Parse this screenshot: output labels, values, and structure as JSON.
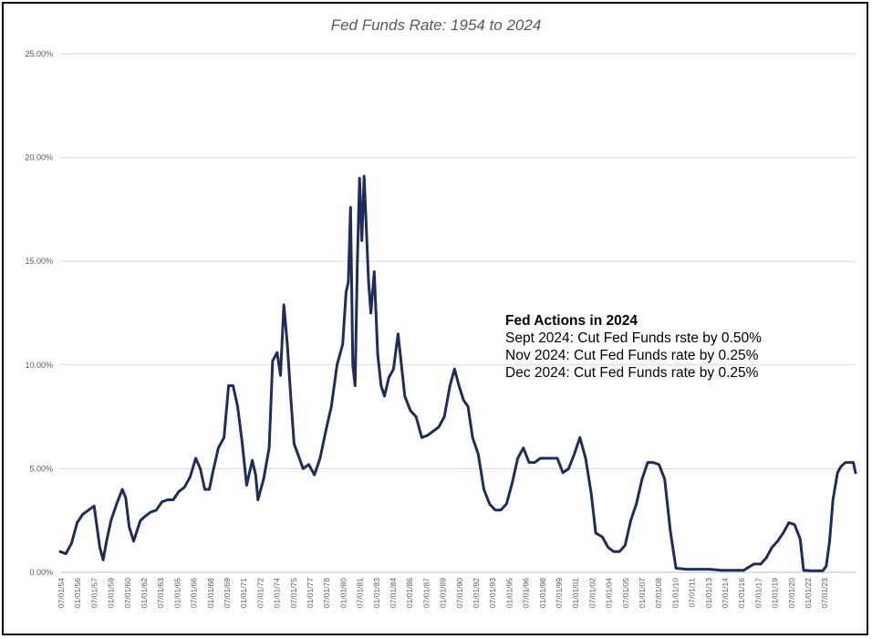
{
  "chart_data": {
    "type": "line",
    "title": "Fed Funds Rate: 1954 to 2024",
    "xlabel": "",
    "ylabel": "",
    "ylim": [
      0,
      25
    ],
    "y_ticks": [
      "0.00%",
      "5.00%",
      "10.00%",
      "15.00%",
      "20.00%",
      "25.00%"
    ],
    "x_tick_labels": [
      "07/01/54",
      "01/01/56",
      "07/01/57",
      "01/01/59",
      "07/01/60",
      "01/01/62",
      "07/01/63",
      "01/01/65",
      "07/01/66",
      "01/01/68",
      "07/01/69",
      "01/01/71",
      "07/01/72",
      "01/01/74",
      "07/01/75",
      "01/01/77",
      "07/01/78",
      "01/01/80",
      "07/01/81",
      "01/01/83",
      "07/01/84",
      "01/01/86",
      "07/01/87",
      "01/01/89",
      "07/01/90",
      "01/01/92",
      "07/01/93",
      "01/01/95",
      "07/01/96",
      "01/01/98",
      "07/01/99",
      "01/01/01",
      "07/01/02",
      "01/01/04",
      "07/01/05",
      "01/01/07",
      "07/01/08",
      "01/01/10",
      "07/01/11",
      "01/01/13",
      "07/01/14",
      "01/01/16",
      "07/01/17",
      "01/01/19",
      "07/01/20",
      "01/01/22",
      "07/01/23"
    ],
    "grid": true,
    "legend": "none",
    "line_color": "#1f2d5c",
    "series": [
      {
        "x": [
          1954.5,
          1955.0,
          1955.5,
          1956.0,
          1956.5,
          1957.0,
          1957.5,
          1958.0,
          1958.3,
          1958.6,
          1959.0,
          1959.5,
          1960.0,
          1960.3,
          1960.6,
          1961.0,
          1961.3,
          1961.6,
          1962.0,
          1962.5,
          1963.0,
          1963.5,
          1964.0,
          1964.5,
          1965.0,
          1965.5,
          1966.0,
          1966.5,
          1966.9,
          1967.3,
          1967.7,
          1968.0,
          1968.5,
          1969.0,
          1969.4,
          1969.8,
          1970.2,
          1970.6,
          1971.0,
          1971.5,
          1971.8,
          1972.0,
          1972.5,
          1973.0,
          1973.3,
          1973.7,
          1974.0,
          1974.3,
          1974.6,
          1974.9,
          1975.2,
          1975.6,
          1976.0,
          1976.5,
          1977.0,
          1977.5,
          1978.0,
          1978.5,
          1979.0,
          1979.5,
          1979.8,
          1980.0,
          1980.2,
          1980.4,
          1980.6,
          1980.8,
          1981.0,
          1981.2,
          1981.4,
          1981.6,
          1981.8,
          1982.0,
          1982.3,
          1982.6,
          1982.9,
          1983.2,
          1983.6,
          1984.0,
          1984.4,
          1984.7,
          1985.0,
          1985.5,
          1986.0,
          1986.5,
          1987.0,
          1987.5,
          1988.0,
          1988.5,
          1989.0,
          1989.4,
          1989.8,
          1990.2,
          1990.6,
          1991.0,
          1991.5,
          1992.0,
          1992.5,
          1993.0,
          1993.5,
          1994.0,
          1994.5,
          1995.0,
          1995.5,
          1996.0,
          1996.5,
          1997.0,
          1997.5,
          1998.0,
          1998.5,
          1999.0,
          1999.5,
          2000.0,
          2000.5,
          2001.0,
          2001.5,
          2001.9,
          2002.5,
          2003.0,
          2003.5,
          2004.0,
          2004.5,
          2005.0,
          2005.5,
          2006.0,
          2006.5,
          2007.0,
          2007.5,
          2008.0,
          2008.5,
          2009.0,
          2010.0,
          2011.0,
          2012.0,
          2013.0,
          2014.0,
          2015.0,
          2015.9,
          2016.5,
          2017.0,
          2017.5,
          2018.0,
          2018.5,
          2019.0,
          2019.5,
          2020.0,
          2020.3,
          2021.0,
          2022.0,
          2022.3,
          2022.6,
          2022.9,
          2023.3,
          2023.6,
          2024.0,
          2024.4,
          2024.7,
          2024.9
        ],
        "y": [
          1.0,
          0.9,
          1.4,
          2.4,
          2.8,
          3.0,
          3.2,
          1.2,
          0.6,
          1.5,
          2.5,
          3.3,
          4.0,
          3.6,
          2.2,
          1.5,
          2.0,
          2.5,
          2.7,
          2.9,
          3.0,
          3.4,
          3.5,
          3.5,
          3.9,
          4.1,
          4.6,
          5.5,
          5.0,
          4.0,
          4.0,
          4.8,
          6.0,
          6.5,
          9.0,
          9.0,
          8.0,
          6.3,
          4.2,
          5.4,
          4.7,
          3.5,
          4.5,
          6.0,
          10.2,
          10.6,
          9.5,
          12.9,
          11.0,
          8.5,
          6.2,
          5.6,
          5.0,
          5.2,
          4.7,
          5.5,
          6.8,
          8.0,
          10.0,
          11.0,
          13.5,
          14.0,
          17.6,
          10.0,
          9.0,
          15.0,
          19.0,
          16.0,
          19.1,
          16.5,
          14.0,
          12.5,
          14.5,
          10.5,
          9.0,
          8.5,
          9.4,
          9.8,
          11.5,
          10.0,
          8.5,
          7.8,
          7.5,
          6.5,
          6.6,
          6.8,
          7.0,
          7.5,
          9.0,
          9.8,
          9.0,
          8.3,
          8.0,
          6.5,
          5.7,
          4.0,
          3.3,
          3.0,
          3.0,
          3.3,
          4.3,
          5.5,
          6.0,
          5.3,
          5.3,
          5.5,
          5.5,
          5.5,
          5.5,
          4.8,
          5.0,
          5.7,
          6.5,
          5.5,
          3.8,
          1.9,
          1.7,
          1.2,
          1.0,
          1.0,
          1.3,
          2.5,
          3.3,
          4.5,
          5.3,
          5.3,
          5.2,
          4.5,
          2.0,
          0.2,
          0.15,
          0.15,
          0.15,
          0.1,
          0.1,
          0.1,
          0.4,
          0.4,
          0.7,
          1.2,
          1.5,
          1.9,
          2.4,
          2.3,
          1.6,
          0.1,
          0.08,
          0.08,
          0.3,
          1.5,
          3.5,
          4.8,
          5.1,
          5.3,
          5.3,
          5.3,
          4.8
        ],
        "y_unit": "%"
      }
    ]
  },
  "annotation": {
    "heading": "Fed Actions in 2024",
    "lines": [
      "Sept 2024: Cut Fed Funds rste by 0.50%",
      "Nov 2024: Cut Fed Funds rate by 0.25%",
      "Dec 2024: Cut Fed Funds rate by 0.25%"
    ]
  }
}
